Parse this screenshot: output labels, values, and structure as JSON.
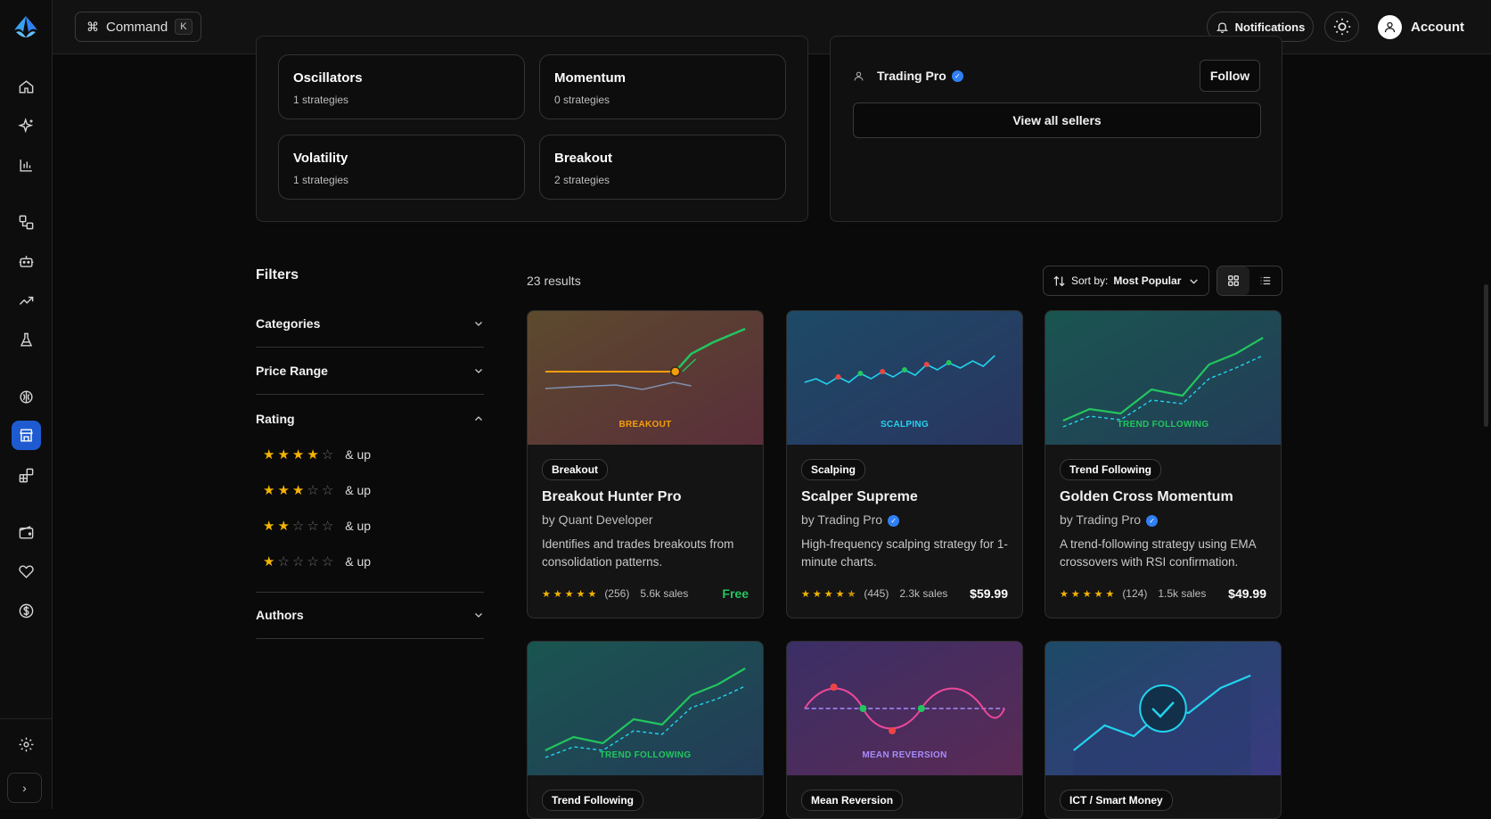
{
  "topbar": {
    "command_label": "Command",
    "command_shortcut": "K",
    "notifications_label": "Notifications",
    "account_label": "Account"
  },
  "sidebar": {
    "icons": [
      "home-icon",
      "sparkles-icon",
      "bar-chart-icon",
      "workflow-icon",
      "bot-icon",
      "trending-up-icon",
      "flask-icon",
      "brain-icon",
      "store-icon",
      "blocks-icon",
      "wallet-icon",
      "heart-icon",
      "dollar-circle-icon"
    ],
    "active": "store-icon",
    "bottom_icons": [
      "gear-icon",
      "chevron-right-icon"
    ]
  },
  "categories": [
    {
      "name": "Oscillators",
      "count": "1 strategies"
    },
    {
      "name": "Momentum",
      "count": "0 strategies"
    },
    {
      "name": "Volatility",
      "count": "1 strategies"
    },
    {
      "name": "Breakout",
      "count": "2 strategies"
    }
  ],
  "sellers": {
    "items": [
      {
        "name": "Trading Pro",
        "verified": true,
        "follow_label": "Follow"
      }
    ],
    "view_all_label": "View all sellers"
  },
  "filters": {
    "title": "Filters",
    "sections": [
      {
        "label": "Categories",
        "expanded": false
      },
      {
        "label": "Price Range",
        "expanded": false
      },
      {
        "label": "Rating",
        "expanded": true
      },
      {
        "label": "Authors",
        "expanded": false
      }
    ],
    "rating_options": [
      {
        "stars": 4,
        "label": "& up"
      },
      {
        "stars": 3,
        "label": "& up"
      },
      {
        "stars": 2,
        "label": "& up"
      },
      {
        "stars": 1,
        "label": "& up"
      }
    ]
  },
  "results": {
    "count_label": "23 results",
    "sort_prefix": "Sort by:",
    "sort_value": "Most Popular",
    "view_mode": "grid"
  },
  "strategies": [
    {
      "thumb_label": "BREAKOUT",
      "tag": "Breakout",
      "title": "Breakout Hunter Pro",
      "author": "by Quant Developer",
      "verified": false,
      "desc": "Identifies and trades breakouts from consolidation patterns.",
      "rating": 5,
      "reviews": "(256)",
      "sales": "5.6k sales",
      "price": "Free",
      "colors": {
        "bg1": "#5c4a2e",
        "bg2": "#5a2e3a",
        "label": "#f59e0b"
      }
    },
    {
      "thumb_label": "SCALPING",
      "tag": "Scalping",
      "title": "Scalper Supreme",
      "author": "by Trading Pro",
      "verified": true,
      "desc": "High-frequency scalping strategy for 1-minute charts.",
      "rating": 4.5,
      "reviews": "(445)",
      "sales": "2.3k sales",
      "price": "$59.99",
      "colors": {
        "bg1": "#1d4a66",
        "bg2": "#2a3560",
        "label": "#22d3ee"
      }
    },
    {
      "thumb_label": "TREND FOLLOWING",
      "tag": "Trend Following",
      "title": "Golden Cross Momentum",
      "author": "by Trading Pro",
      "verified": true,
      "desc": "A trend-following strategy using EMA crossovers with RSI confirmation.",
      "rating": 5,
      "reviews": "(124)",
      "sales": "1.5k sales",
      "price": "$49.99",
      "colors": {
        "bg1": "#1a5550",
        "bg2": "#233c58",
        "label": "#22c55e"
      }
    },
    {
      "thumb_label": "TREND FOLLOWING",
      "tag": "Trend Following",
      "colors": {
        "bg1": "#1a5550",
        "bg2": "#233c58",
        "label": "#22c55e"
      }
    },
    {
      "thumb_label": "MEAN REVERSION",
      "tag": "Mean Reversion",
      "colors": {
        "bg1": "#3b2f66",
        "bg2": "#5a2a55",
        "label": "#a78bfa"
      }
    },
    {
      "thumb_label": "",
      "tag": "ICT / Smart Money",
      "colors": {
        "bg1": "#1d4a66",
        "bg2": "#3a3a80",
        "label": "#22d3ee"
      }
    }
  ]
}
